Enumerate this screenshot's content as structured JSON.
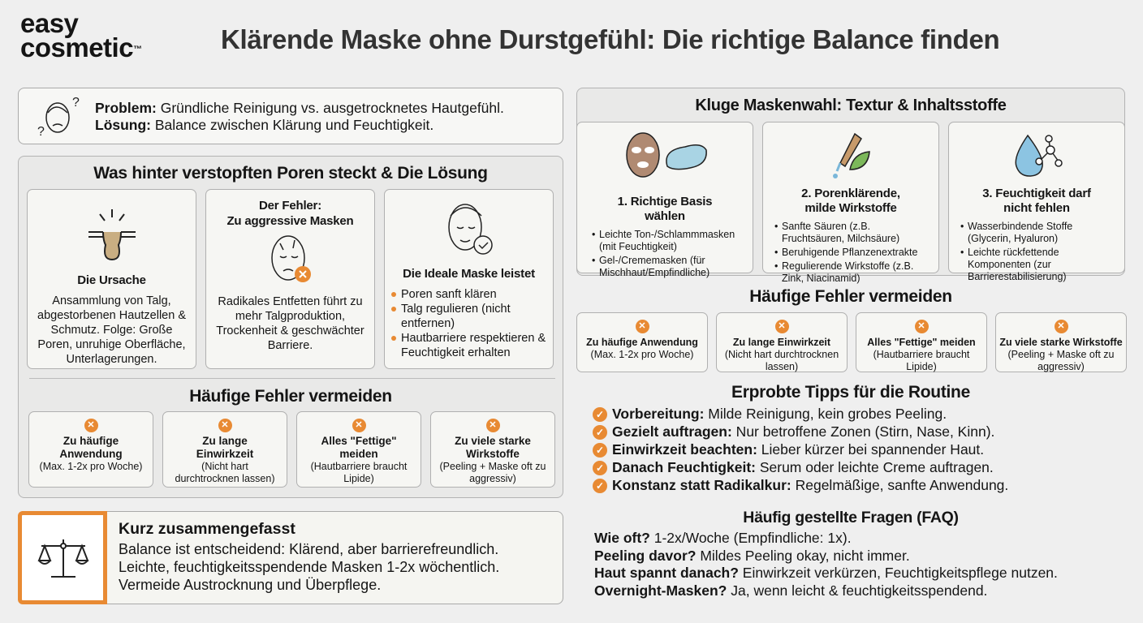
{
  "logo": {
    "line1": "easy",
    "line2": "cosmetic",
    "tm": "™"
  },
  "title": "Klärende Maske ohne Durstgefühl: Die richtige Balance finden",
  "problem": {
    "label": "Problem:",
    "text": " Gründliche Reinigung vs. ausgetrocknetes Hautgefühl.",
    "solution_label": "Lösung:",
    "solution_text": " Balance zwischen Klärung und Feuchtigkeit."
  },
  "pores": {
    "heading": "Was hinter verstopften Poren steckt & Die Lösung",
    "cause": {
      "title": "Die Ursache",
      "text": "Ansammlung von Talg, abgestorbenen Hautzellen & Schmutz. Folge: Große Poren, unruhige Oberfläche, Unterlagerungen."
    },
    "error": {
      "title_line1": "Der Fehler:",
      "title_line2": "Zu aggressive Masken",
      "text": "Radikales Entfetten führt zu mehr Talgproduktion, Trockenheit & geschwächter Barriere."
    },
    "ideal": {
      "title": "Die Ideale Maske leistet",
      "items": [
        "Poren sanft klären",
        "Talg regulieren (nicht entfernen)",
        "Hautbarriere respektieren & Feuchtigkeit erhalten"
      ]
    }
  },
  "mistakes_left": {
    "heading": "Häufige Fehler vermeiden",
    "items": [
      {
        "title": "Zu häufige Anwendung",
        "note": "(Max. 1-2x pro Woche)"
      },
      {
        "title": "Zu lange Einwirkzeit",
        "note": "(Nicht hart durchtrocknen lassen)"
      },
      {
        "title": "Alles \"Fettige\" meiden",
        "note": "(Hautbarriere braucht Lipide)"
      },
      {
        "title": "Zu viele starke Wirkstoffe",
        "note": "(Peeling + Maske oft zu aggressiv)"
      }
    ]
  },
  "summary": {
    "title": "Kurz zusammengefasst",
    "lines": [
      "Balance ist entscheidend: Klärend, aber barrierefreundlich.",
      "Leichte, feuchtigkeitsspendende Masken 1-2x wöchentlich.",
      "Vermeide Austrocknung und Überpflege."
    ]
  },
  "choice": {
    "heading": "Kluge Maskenwahl: Textur & Inhaltsstoffe",
    "cards": [
      {
        "title": "1. Richtige Basis wählen",
        "items": [
          "Leichte Ton-/Schlammmasken (mit Feuchtigkeit)",
          "Gel-/Crememasken (für Mischhaut/Empfindliche)"
        ]
      },
      {
        "title": "2. Porenklärende, milde Wirkstoffe",
        "items": [
          "Sanfte Säuren (z.B. Fruchtsäuren, Milchsäure)",
          "Beruhigende Pflanzenextrakte",
          "Regulierende Wirkstoffe (z.B. Zink, Niacinamid)"
        ]
      },
      {
        "title": "3. Feuchtigkeit darf nicht fehlen",
        "items": [
          "Wasserbindende Stoffe (Glycerin, Hyaluron)",
          "Leichte rückfettende Komponenten (zur Barrierestabilisierung)"
        ]
      }
    ]
  },
  "mistakes_right": {
    "heading": "Häufige Fehler vermeiden",
    "items": [
      {
        "title": "Zu häufige Anwendung",
        "note": "(Max. 1-2x pro Woche)"
      },
      {
        "title": "Zu lange Einwirkzeit",
        "note": "(Nicht hart durchtrocknen lassen)"
      },
      {
        "title": "Alles \"Fettige\" meiden",
        "note": "(Hautbarriere braucht Lipide)"
      },
      {
        "title": "Zu viele starke Wirkstoffe",
        "note": "(Peeling + Maske oft zu aggressiv)"
      }
    ]
  },
  "tips": {
    "heading": "Erprobte Tipps für die Routine",
    "items": [
      {
        "label": "Vorbereitung:",
        "text": " Milde Reinigung, kein grobes Peeling."
      },
      {
        "label": "Gezielt auftragen:",
        "text": " Nur betroffene Zonen (Stirn, Nase, Kinn)."
      },
      {
        "label": "Einwirkzeit beachten:",
        "text": " Lieber kürzer bei spannender Haut."
      },
      {
        "label": "Danach Feuchtigkeit:",
        "text": " Serum oder leichte Creme auftragen."
      },
      {
        "label": "Konstanz statt Radikalkur:",
        "text": " Regelmäßige, sanfte Anwendung."
      }
    ]
  },
  "faq": {
    "heading": "Häufig gestellte Fragen (FAQ)",
    "items": [
      {
        "q": "Wie oft?",
        "a": " 1-2x/Woche (Empfindliche: 1x)."
      },
      {
        "q": "Peeling davor?",
        "a": " Mildes Peeling okay, nicht immer."
      },
      {
        "q": "Haut spannt danach?",
        "a": " Einwirkzeit verkürzen, Feuchtigkeitspflege nutzen."
      },
      {
        "q": "Overnight-Masken?",
        "a": " Ja, wenn leicht & feuchtigkeitsspendend."
      }
    ]
  },
  "colors": {
    "accent": "#e88a33",
    "background": "#efefef"
  }
}
